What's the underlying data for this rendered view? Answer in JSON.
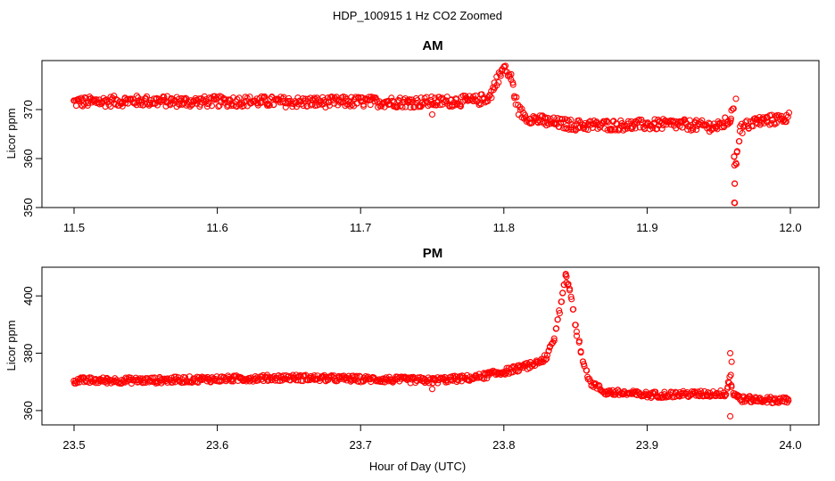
{
  "figure": {
    "title": "HDP_100915  1 Hz CO2 Zoomed",
    "xlabel": "Hour of Day (UTC)"
  },
  "colors": {
    "points": "#ff0000",
    "axis": "#000000",
    "background": "#ffffff"
  },
  "chart_data": [
    {
      "type": "scatter",
      "title": "AM",
      "ylabel": "Licor ppm",
      "xlim": [
        11.5,
        12.0
      ],
      "ylim": [
        350,
        380
      ],
      "xticks": [
        11.5,
        11.6,
        11.7,
        11.8,
        11.9,
        12.0
      ],
      "xtick_labels": [
        "11.5",
        "11.6",
        "11.7",
        "11.8",
        "11.9",
        "12.0"
      ],
      "yticks": [
        350,
        360,
        370
      ],
      "ytick_labels": [
        "350",
        "360",
        "370"
      ],
      "grid": false,
      "marker": "open-circle",
      "series": [
        {
          "x": [
            11.5,
            11.54,
            11.58,
            11.62,
            11.66,
            11.7,
            11.74,
            11.78,
            11.79,
            11.795,
            11.8,
            11.805,
            11.81,
            11.815,
            11.83,
            11.85,
            11.88,
            11.92,
            11.95,
            11.958,
            11.96,
            11.961,
            11.962,
            11.965,
            11.975,
            11.99,
            12.0
          ],
          "y": [
            371.5,
            371.8,
            371.6,
            371.7,
            371.5,
            371.6,
            371.5,
            371.8,
            372.5,
            376.0,
            378.5,
            376.5,
            370.0,
            368.5,
            367.5,
            366.8,
            366.8,
            367.0,
            366.5,
            368.0,
            370.0,
            351.0,
            359.0,
            366.0,
            367.5,
            368.0,
            368.5
          ]
        }
      ],
      "outliers": [
        {
          "x": 11.75,
          "y": 369.0
        },
        {
          "x": 11.961,
          "y": 351.0
        },
        {
          "x": 11.961,
          "y": 358.6
        },
        {
          "x": 11.962,
          "y": 372.2
        }
      ]
    },
    {
      "type": "scatter",
      "title": "PM",
      "ylabel": "Licor ppm",
      "xlim": [
        23.5,
        24.0
      ],
      "ylim": [
        355,
        410
      ],
      "xticks": [
        23.5,
        23.6,
        23.7,
        23.8,
        23.9,
        24.0
      ],
      "xtick_labels": [
        "23.5",
        "23.6",
        "23.7",
        "23.8",
        "23.9",
        "24.0"
      ],
      "yticks": [
        360,
        380,
        400
      ],
      "ytick_labels": [
        "360",
        "380",
        "400"
      ],
      "grid": false,
      "marker": "open-circle",
      "series": [
        {
          "x": [
            23.5,
            23.55,
            23.6,
            23.65,
            23.7,
            23.75,
            23.78,
            23.8,
            23.82,
            23.83,
            23.835,
            23.84,
            23.843,
            23.846,
            23.85,
            23.855,
            23.86,
            23.87,
            23.9,
            23.94,
            23.955,
            23.958,
            23.96,
            23.965,
            23.98,
            24.0
          ],
          "y": [
            370.5,
            370.5,
            371.0,
            371.5,
            371.0,
            370.5,
            371.5,
            373.5,
            376.0,
            378.5,
            385.0,
            398.0,
            407.0,
            403.0,
            390.0,
            378.0,
            370.0,
            366.5,
            365.5,
            365.8,
            366.0,
            372.0,
            366.0,
            364.0,
            363.8,
            363.5
          ]
        }
      ],
      "outliers": [
        {
          "x": 23.75,
          "y": 367.5
        },
        {
          "x": 23.958,
          "y": 358.0
        },
        {
          "x": 23.958,
          "y": 380.0
        },
        {
          "x": 23.959,
          "y": 377.0
        }
      ]
    }
  ]
}
